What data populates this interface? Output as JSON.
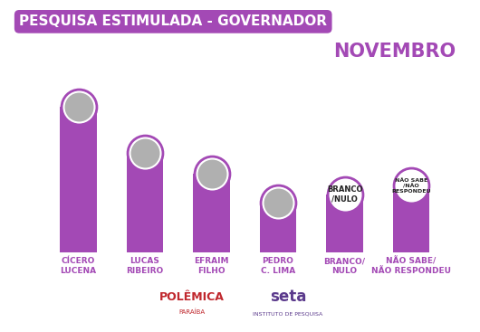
{
  "chart_data": {
    "type": "bar",
    "title": "PESQUISA ESTIMULADA - GOVERNADOR",
    "subtitle": "NOVEMBRO",
    "categories": [
      "CÍCERO\nLUCENA",
      "LUCAS\nRIBEIRO",
      "EFRAIM\nFILHO",
      "PEDRO\nC. LIMA",
      "BRANCO/\nNULO",
      "NÃO SABE/\nNÃO RESPONDEU"
    ],
    "values": [
      35,
      24,
      19,
      12,
      14,
      16
    ],
    "annotations": [
      null,
      null,
      null,
      null,
      "BRANCO\n/NULO",
      "NÃO SABE\n/NÃO\nRESPONDEU"
    ],
    "sources": [
      "POLÊMICA",
      "PARAÍBA",
      "seta",
      "INSTITUTO DE PESQUISA"
    ],
    "color": "#a349b5",
    "tick_labels": "x",
    "grid": false,
    "data_labels": false
  }
}
